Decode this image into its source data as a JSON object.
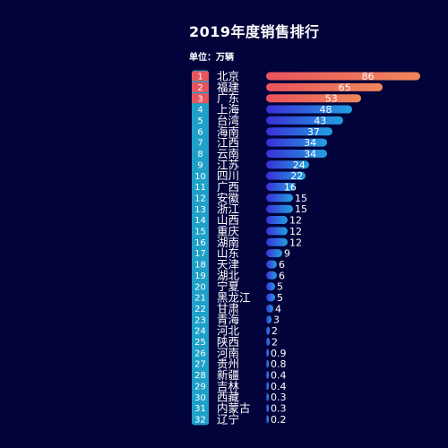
{
  "title": "2019年度销售排行",
  "unit_label": "单位：万辆",
  "colors": {
    "background": "#02033a",
    "top_rank_badge": "#e8545c",
    "rank_badge": "#1ea0c8",
    "text": "#ffffff",
    "top_bar_start": "#e8545c",
    "top_bar_end": "#f0875a",
    "bar_start": "#3a2fd8",
    "bar_end": "#22a0e0"
  },
  "chart_data": {
    "type": "bar",
    "orientation": "horizontal",
    "title": "2019年度销售排行",
    "unit": "单位：万辆",
    "ranks": [
      "1",
      "2",
      "3",
      "4",
      "5",
      "6",
      "7",
      "8",
      "9",
      "10",
      "11",
      "12",
      "13",
      "14",
      "15",
      "16",
      "17",
      "18",
      "19",
      "20",
      "21",
      "22",
      "23",
      "24",
      "25",
      "26",
      "27",
      "28",
      "29",
      "30",
      "31",
      "32"
    ],
    "categories": [
      "北京",
      "福建",
      "广东",
      "上海",
      "台湾",
      "海南",
      "江西",
      "云南",
      "江苏",
      "四川",
      "广西",
      "安徽",
      "浙江",
      "山西",
      "重庆",
      "湖南",
      "山东",
      "天津",
      "湖北",
      "宁夏",
      "黑龙江",
      "甘肃",
      "青海",
      "河北",
      "陕西",
      "河南",
      "贵州",
      "新疆",
      "吉林",
      "西藏",
      "内蒙古",
      "辽宁"
    ],
    "values": [
      86,
      65,
      53,
      48,
      43,
      37,
      34,
      34,
      24,
      22,
      16,
      15,
      15,
      12,
      12,
      12,
      9,
      6,
      6,
      5,
      5,
      4,
      3,
      2,
      2,
      0.9,
      0.8,
      0.4,
      0.4,
      0.3,
      0.3,
      0.2
    ],
    "value_labels": [
      "86",
      "65",
      "53",
      "48",
      "43",
      "37",
      "34",
      "34",
      "24",
      "22",
      "16",
      "15",
      "15",
      "12",
      "12",
      "12",
      "9",
      "6",
      "6",
      "5",
      "5",
      "4",
      "3",
      "2",
      "2",
      "0.9",
      "0.8",
      "0.4",
      "0.4",
      "0.3",
      "0.3",
      "0.2"
    ],
    "xlim": [
      0,
      90
    ],
    "highlight_top": 3,
    "legend": "none",
    "grid": false
  }
}
